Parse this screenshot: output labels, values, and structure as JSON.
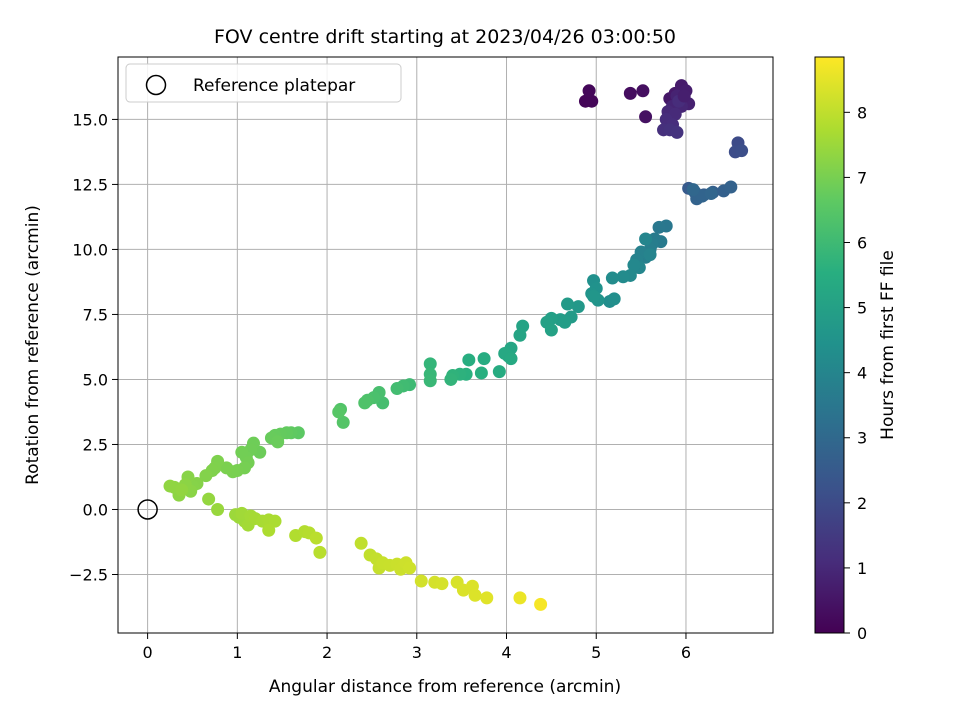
{
  "chart_data": {
    "type": "scatter",
    "title": "FOV centre drift starting at 2023/04/26 03:00:50",
    "xlabel": "Angular distance from reference (arcmin)",
    "ylabel": "Rotation from reference (arcmin)",
    "xlim": [
      -0.33,
      6.97
    ],
    "ylim": [
      -4.75,
      17.4
    ],
    "xticks": [
      0,
      1,
      2,
      3,
      4,
      5,
      6
    ],
    "xtick_labels": [
      "0",
      "1",
      "2",
      "3",
      "4",
      "5",
      "6"
    ],
    "yticks": [
      -2.5,
      0.0,
      2.5,
      5.0,
      7.5,
      10.0,
      12.5,
      15.0
    ],
    "ytick_labels": [
      "−2.5",
      "0.0",
      "2.5",
      "5.0",
      "7.5",
      "10.0",
      "12.5",
      "15.0"
    ],
    "grid": true,
    "legend": {
      "position": "top-left",
      "entries": [
        "Reference platepar"
      ]
    },
    "reference_point": {
      "x": 0,
      "y": 0
    },
    "colorbar": {
      "label": "Hours from first FF file",
      "colormap": "viridis",
      "range": [
        0,
        8.85
      ],
      "ticks": [
        0,
        1,
        2,
        3,
        4,
        5,
        6,
        7,
        8
      ],
      "tick_labels": [
        "0",
        "1",
        "2",
        "3",
        "4",
        "5",
        "6",
        "7",
        "8"
      ]
    },
    "points": [
      [
        4.88,
        15.7,
        0.1
      ],
      [
        4.95,
        15.7,
        0.12
      ],
      [
        4.92,
        16.1,
        0.15
      ],
      [
        5.38,
        16.0,
        0.3
      ],
      [
        5.52,
        16.1,
        0.35
      ],
      [
        5.55,
        15.1,
        0.4
      ],
      [
        5.82,
        15.8,
        0.55
      ],
      [
        5.88,
        16.0,
        0.6
      ],
      [
        5.95,
        16.3,
        0.65
      ],
      [
        6.0,
        16.1,
        0.7
      ],
      [
        6.03,
        15.6,
        0.8
      ],
      [
        5.9,
        15.9,
        0.85
      ],
      [
        5.85,
        15.5,
        0.9
      ],
      [
        5.95,
        15.5,
        0.95
      ],
      [
        5.8,
        15.3,
        1.0
      ],
      [
        5.88,
        15.2,
        1.05
      ],
      [
        5.78,
        15.0,
        1.1
      ],
      [
        5.85,
        14.8,
        1.15
      ],
      [
        5.75,
        14.6,
        1.2
      ],
      [
        5.82,
        14.6,
        1.25
      ],
      [
        5.9,
        14.5,
        1.3
      ],
      [
        5.92,
        15.7,
        1.1
      ],
      [
        5.98,
        15.9,
        0.75
      ],
      [
        6.58,
        14.1,
        2.0
      ],
      [
        6.55,
        13.75,
        2.05
      ],
      [
        6.62,
        13.8,
        2.1
      ],
      [
        6.03,
        12.35,
        2.5
      ],
      [
        6.1,
        12.2,
        2.55
      ],
      [
        6.2,
        12.1,
        2.6
      ],
      [
        6.3,
        12.2,
        2.65
      ],
      [
        6.42,
        12.25,
        2.7
      ],
      [
        6.5,
        12.4,
        2.75
      ],
      [
        6.12,
        11.95,
        2.8
      ],
      [
        6.18,
        12.05,
        2.85
      ],
      [
        6.28,
        12.15,
        2.9
      ],
      [
        6.08,
        12.3,
        2.95
      ],
      [
        5.78,
        10.9,
        3.5
      ],
      [
        5.7,
        10.85,
        3.55
      ],
      [
        5.72,
        10.3,
        3.6
      ],
      [
        5.65,
        10.4,
        3.65
      ],
      [
        5.62,
        10.2,
        3.7
      ],
      [
        5.6,
        10.0,
        3.75
      ],
      [
        5.55,
        9.7,
        3.8
      ],
      [
        5.5,
        9.9,
        3.85
      ],
      [
        5.45,
        9.6,
        3.9
      ],
      [
        5.6,
        9.8,
        3.95
      ],
      [
        5.55,
        10.4,
        4.0
      ],
      [
        5.48,
        9.3,
        4.05
      ],
      [
        5.42,
        9.4,
        4.1
      ],
      [
        5.38,
        9.0,
        4.15
      ],
      [
        5.3,
        8.95,
        4.2
      ],
      [
        5.18,
        8.9,
        4.25
      ],
      [
        5.15,
        8.0,
        4.3
      ],
      [
        5.2,
        8.1,
        4.35
      ],
      [
        4.97,
        8.8,
        4.4
      ],
      [
        5.0,
        8.5,
        4.45
      ],
      [
        4.95,
        8.3,
        4.5
      ],
      [
        5.02,
        8.05,
        4.55
      ],
      [
        4.97,
        8.2,
        4.6
      ],
      [
        4.8,
        7.8,
        4.7
      ],
      [
        4.68,
        7.9,
        4.75
      ],
      [
        4.72,
        7.4,
        4.8
      ],
      [
        4.6,
        7.3,
        4.85
      ],
      [
        4.65,
        7.2,
        4.9
      ],
      [
        4.5,
        7.35,
        4.95
      ],
      [
        4.45,
        7.2,
        5.0
      ],
      [
        4.5,
        6.9,
        5.05
      ],
      [
        4.18,
        7.05,
        5.1
      ],
      [
        4.15,
        6.7,
        5.15
      ],
      [
        4.05,
        6.2,
        5.2
      ],
      [
        4.02,
        5.9,
        5.25
      ],
      [
        3.98,
        6.0,
        5.3
      ],
      [
        4.05,
        5.8,
        5.35
      ],
      [
        3.92,
        5.3,
        5.4
      ],
      [
        3.75,
        5.8,
        5.45
      ],
      [
        3.58,
        5.75,
        5.5
      ],
      [
        3.72,
        5.25,
        5.55
      ],
      [
        3.55,
        5.2,
        5.6
      ],
      [
        3.48,
        5.2,
        5.65
      ],
      [
        3.4,
        5.15,
        5.7
      ],
      [
        3.38,
        5.0,
        5.75
      ],
      [
        3.15,
        5.6,
        5.8
      ],
      [
        3.15,
        5.2,
        5.85
      ],
      [
        3.15,
        4.95,
        5.9
      ],
      [
        2.92,
        4.8,
        6.0
      ],
      [
        2.85,
        4.75,
        6.05
      ],
      [
        2.78,
        4.65,
        6.1
      ],
      [
        2.62,
        4.1,
        6.15
      ],
      [
        2.58,
        4.5,
        6.2
      ],
      [
        2.52,
        4.3,
        6.25
      ],
      [
        2.45,
        4.2,
        6.3
      ],
      [
        2.42,
        4.1,
        6.35
      ],
      [
        2.15,
        3.85,
        6.4
      ],
      [
        2.18,
        3.35,
        6.45
      ],
      [
        2.13,
        3.75,
        6.5
      ],
      [
        1.68,
        2.95,
        6.6
      ],
      [
        1.6,
        2.95,
        6.65
      ],
      [
        1.55,
        2.95,
        6.7
      ],
      [
        1.48,
        2.9,
        6.72
      ],
      [
        1.42,
        2.85,
        6.75
      ],
      [
        1.38,
        2.75,
        6.78
      ],
      [
        1.45,
        2.6,
        6.8
      ],
      [
        1.25,
        2.2,
        6.83
      ],
      [
        1.18,
        2.55,
        6.86
      ],
      [
        1.15,
        2.3,
        6.88
      ],
      [
        1.1,
        2.0,
        6.9
      ],
      [
        1.05,
        2.2,
        6.92
      ],
      [
        1.12,
        1.8,
        6.95
      ],
      [
        1.08,
        1.6,
        6.97
      ],
      [
        1.0,
        1.5,
        7.0
      ],
      [
        0.95,
        1.45,
        7.02
      ],
      [
        0.88,
        1.6,
        7.05
      ],
      [
        0.78,
        1.85,
        7.08
      ],
      [
        0.75,
        1.6,
        7.1
      ],
      [
        0.72,
        1.5,
        7.12
      ],
      [
        0.65,
        1.3,
        7.15
      ],
      [
        0.55,
        1.0,
        7.18
      ],
      [
        0.5,
        0.9,
        7.2
      ],
      [
        0.45,
        1.25,
        7.22
      ],
      [
        0.48,
        0.7,
        7.25
      ],
      [
        0.42,
        0.95,
        7.28
      ],
      [
        0.35,
        0.55,
        7.3
      ],
      [
        0.3,
        0.85,
        7.32
      ],
      [
        0.25,
        0.9,
        7.34
      ],
      [
        0.38,
        0.75,
        7.36
      ],
      [
        0.68,
        0.4,
        7.4
      ],
      [
        0.78,
        0.0,
        7.45
      ],
      [
        0.98,
        -0.2,
        7.5
      ],
      [
        1.02,
        -0.3,
        7.52
      ],
      [
        1.08,
        -0.45,
        7.55
      ],
      [
        1.05,
        -0.15,
        7.57
      ],
      [
        1.12,
        -0.6,
        7.6
      ],
      [
        1.15,
        -0.25,
        7.62
      ],
      [
        1.2,
        -0.35,
        7.65
      ],
      [
        1.28,
        -0.45,
        7.68
      ],
      [
        1.35,
        -0.4,
        7.7
      ],
      [
        1.42,
        -0.45,
        7.72
      ],
      [
        1.35,
        -0.8,
        7.75
      ],
      [
        1.65,
        -1.0,
        7.8
      ],
      [
        1.75,
        -0.85,
        7.83
      ],
      [
        1.8,
        -0.9,
        7.86
      ],
      [
        1.92,
        -1.65,
        7.9
      ],
      [
        1.88,
        -1.1,
        7.93
      ],
      [
        2.38,
        -1.3,
        8.0
      ],
      [
        2.48,
        -1.75,
        8.02
      ],
      [
        2.55,
        -1.9,
        8.05
      ],
      [
        2.58,
        -2.25,
        8.08
      ],
      [
        2.62,
        -2.05,
        8.1
      ],
      [
        2.7,
        -2.15,
        8.12
      ],
      [
        2.78,
        -2.1,
        8.14
      ],
      [
        2.82,
        -2.3,
        8.16
      ],
      [
        2.88,
        -2.05,
        8.18
      ],
      [
        2.92,
        -2.25,
        8.2
      ],
      [
        3.05,
        -2.75,
        8.25
      ],
      [
        3.2,
        -2.8,
        8.28
      ],
      [
        3.28,
        -2.85,
        8.3
      ],
      [
        3.45,
        -2.8,
        8.33
      ],
      [
        3.52,
        -3.1,
        8.36
      ],
      [
        3.62,
        -2.95,
        8.38
      ],
      [
        3.65,
        -3.3,
        8.4
      ],
      [
        3.78,
        -3.4,
        8.45
      ],
      [
        4.15,
        -3.4,
        8.6
      ],
      [
        4.38,
        -3.65,
        8.75
      ]
    ]
  }
}
